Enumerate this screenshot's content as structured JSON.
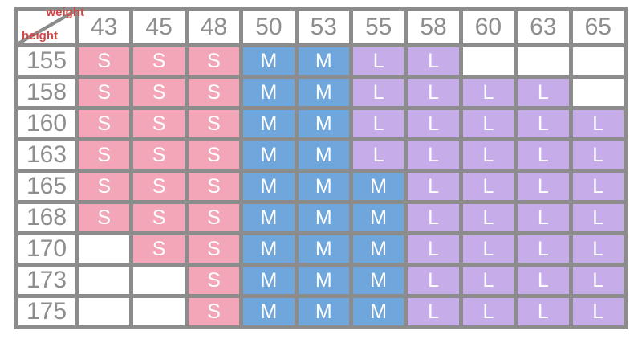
{
  "corner": {
    "weight_label": "weight",
    "height_label": "height"
  },
  "table": {
    "weights": [
      "43",
      "45",
      "48",
      "50",
      "53",
      "55",
      "58",
      "60",
      "63",
      "65"
    ],
    "rows": [
      {
        "height": "155",
        "cells": [
          "S",
          "S",
          "S",
          "M",
          "M",
          "L",
          "L",
          "",
          "",
          ""
        ]
      },
      {
        "height": "158",
        "cells": [
          "S",
          "S",
          "S",
          "M",
          "M",
          "L",
          "L",
          "L",
          "L",
          ""
        ]
      },
      {
        "height": "160",
        "cells": [
          "S",
          "S",
          "S",
          "M",
          "M",
          "L",
          "L",
          "L",
          "L",
          "L"
        ]
      },
      {
        "height": "163",
        "cells": [
          "S",
          "S",
          "S",
          "M",
          "M",
          "L",
          "L",
          "L",
          "L",
          "L"
        ]
      },
      {
        "height": "165",
        "cells": [
          "S",
          "S",
          "S",
          "M",
          "M",
          "M",
          "L",
          "L",
          "L",
          "L"
        ]
      },
      {
        "height": "168",
        "cells": [
          "S",
          "S",
          "S",
          "M",
          "M",
          "M",
          "L",
          "L",
          "L",
          "L"
        ]
      },
      {
        "height": "170",
        "cells": [
          "",
          "S",
          "S",
          "M",
          "M",
          "M",
          "L",
          "L",
          "L",
          "L"
        ]
      },
      {
        "height": "173",
        "cells": [
          "",
          "",
          "S",
          "M",
          "M",
          "M",
          "L",
          "L",
          "L",
          "L"
        ]
      },
      {
        "height": "175",
        "cells": [
          "",
          "",
          "S",
          "M",
          "M",
          "M",
          "L",
          "L",
          "L",
          "L"
        ]
      }
    ]
  },
  "colors": {
    "size_s": "#F2A6B8",
    "size_m": "#6FA6DC",
    "size_l": "#C7ACEA",
    "grid": "#8C8C8C",
    "number_text": "#8E8E8E",
    "cell_text": "#FFFFFF",
    "label_red": "#D04545"
  }
}
